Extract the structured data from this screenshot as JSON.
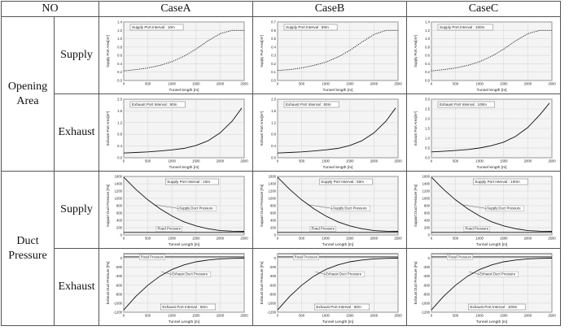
{
  "header": {
    "no": "NO",
    "cases": [
      "CaseA",
      "CaseB",
      "CaseC"
    ]
  },
  "groups": [
    {
      "label_lines": [
        "Opening",
        "Area"
      ],
      "rows": [
        "Supply",
        "Exhaust"
      ]
    },
    {
      "label_lines": [
        "Duct",
        "Pressure"
      ],
      "rows": [
        "Supply",
        "Exhaust"
      ]
    }
  ],
  "chart_data": [
    {
      "id": "area-supply-A",
      "type": "line",
      "style": "dotted",
      "ylabel": "Supply Port Area[m²]",
      "xlabel": "Tunnel length [m]",
      "annotation": "Supply Port Interval : 10m",
      "xlim": [
        0,
        2500
      ],
      "ylim": [
        0,
        1.4
      ],
      "xticks": [
        "0",
        "500",
        "1000",
        "1500",
        "2000",
        "2500"
      ],
      "yticks": [
        "0.0",
        "0.2",
        "0.4",
        "0.6",
        "0.8",
        "1.0",
        "1.2",
        "1.4"
      ],
      "x": [
        0,
        250,
        500,
        750,
        1000,
        1250,
        1500,
        1750,
        2000,
        2250,
        2500
      ],
      "y": [
        0.23,
        0.26,
        0.3,
        0.36,
        0.45,
        0.58,
        0.75,
        0.95,
        1.12,
        1.2,
        1.2
      ]
    },
    {
      "id": "area-supply-B",
      "type": "line",
      "style": "dotted",
      "ylabel": "Supply Port Area[m²]",
      "xlabel": "Tunnel length [m]",
      "annotation": "Supply Port Interval : 50m",
      "xlim": [
        0,
        2500
      ],
      "ylim": [
        0,
        0.7
      ],
      "xticks": [
        "0",
        "500",
        "1000",
        "1500",
        "2000",
        "2500"
      ],
      "yticks": [
        "0.0",
        "0.1",
        "0.2",
        "0.3",
        "0.4",
        "0.5",
        "0.6",
        "0.7"
      ],
      "x": [
        0,
        250,
        500,
        750,
        1000,
        1250,
        1500,
        1750,
        2000,
        2250,
        2500
      ],
      "y": [
        0.12,
        0.13,
        0.15,
        0.18,
        0.22,
        0.28,
        0.36,
        0.46,
        0.55,
        0.6,
        0.6
      ]
    },
    {
      "id": "area-supply-C",
      "type": "line",
      "style": "dotted",
      "ylabel": "Supply Port Area[m²]",
      "xlabel": "Tunnel length [m]",
      "annotation": "Supply Port Interval : 100m",
      "xlim": [
        0,
        2500
      ],
      "ylim": [
        0,
        1.4
      ],
      "xticks": [
        "0",
        "500",
        "1000",
        "1500",
        "2000",
        "2500"
      ],
      "yticks": [
        "0.0",
        "0.2",
        "0.4",
        "0.6",
        "0.8",
        "1.0",
        "1.2",
        "1.4"
      ],
      "x": [
        0,
        250,
        500,
        750,
        1000,
        1250,
        1500,
        1750,
        2000,
        2250,
        2500
      ],
      "y": [
        0.23,
        0.26,
        0.3,
        0.36,
        0.45,
        0.58,
        0.75,
        0.95,
        1.12,
        1.2,
        1.2
      ]
    },
    {
      "id": "area-exhaust-A",
      "type": "line",
      "style": "solid",
      "ylabel": "Exhaust Port Area[m²]",
      "xlabel": "Tunnel length [m]",
      "annotation": "Exhaust Port Interval : 50m",
      "xlim": [
        0,
        2500
      ],
      "ylim": [
        0,
        2.0
      ],
      "xticks": [
        "0",
        "500",
        "1000",
        "1500",
        "2000",
        "2500"
      ],
      "yticks": [
        "0.0",
        "0.4",
        "0.8",
        "1.2",
        "1.6",
        "2.0"
      ],
      "x": [
        0,
        250,
        500,
        750,
        1000,
        1250,
        1500,
        1750,
        2000,
        2250,
        2450
      ],
      "y": [
        0.16,
        0.18,
        0.2,
        0.23,
        0.27,
        0.32,
        0.42,
        0.58,
        0.85,
        1.25,
        1.7
      ]
    },
    {
      "id": "area-exhaust-B",
      "type": "line",
      "style": "solid",
      "ylabel": "Exhaust Port Area[m²]",
      "xlabel": "Tunnel length [m]",
      "annotation": "Exhaust Port Interval : 50m",
      "xlim": [
        0,
        2500
      ],
      "ylim": [
        0,
        2.0
      ],
      "xticks": [
        "0",
        "500",
        "1000",
        "1500",
        "2000",
        "2500"
      ],
      "yticks": [
        "0.0",
        "0.4",
        "0.8",
        "1.2",
        "1.6",
        "2.0"
      ],
      "x": [
        0,
        250,
        500,
        750,
        1000,
        1250,
        1500,
        1750,
        2000,
        2250,
        2450
      ],
      "y": [
        0.16,
        0.18,
        0.2,
        0.23,
        0.27,
        0.32,
        0.42,
        0.58,
        0.85,
        1.25,
        1.7
      ]
    },
    {
      "id": "area-exhaust-C",
      "type": "line",
      "style": "solid",
      "ylabel": "Exhaust Port Area[m²]",
      "xlabel": "Tunnel length [m]",
      "annotation": "Exhaust Port Interval : 100m",
      "xlim": [
        0,
        2500
      ],
      "ylim": [
        0,
        3.0
      ],
      "xticks": [
        "0",
        "500",
        "1000",
        "1500",
        "2000",
        "2500"
      ],
      "yticks": [
        "0.0",
        "0.5",
        "1.0",
        "1.5",
        "2.0",
        "2.5",
        "3.0"
      ],
      "x": [
        0,
        250,
        500,
        750,
        1000,
        1250,
        1500,
        1750,
        2000,
        2250,
        2450
      ],
      "y": [
        0.3,
        0.33,
        0.37,
        0.42,
        0.5,
        0.62,
        0.8,
        1.1,
        1.55,
        2.2,
        2.8
      ]
    },
    {
      "id": "pressure-supply-A",
      "type": "line",
      "style": "solid",
      "ylabel": "Support Duct Pressure [Pa]",
      "xlabel": "Tunnel Length [m]",
      "annotation": "Supply Port Interval : 10m",
      "series_labels": [
        "Supply Duct Pressure",
        "Road Pressure"
      ],
      "xlim": [
        0,
        2500
      ],
      "ylim": [
        0,
        1600
      ],
      "xticks": [
        "0",
        "500",
        "1000",
        "1500",
        "2000",
        "2500"
      ],
      "yticks": [
        "0",
        "200",
        "400",
        "600",
        "800",
        "1000",
        "1200",
        "1400",
        "1600"
      ],
      "series": [
        {
          "x": [
            0,
            250,
            500,
            750,
            1000,
            1250,
            1500,
            1750,
            2000,
            2250,
            2500
          ],
          "y": [
            1580,
            1250,
            960,
            720,
            520,
            360,
            250,
            170,
            120,
            105,
            100
          ]
        },
        {
          "x": [
            0,
            2500
          ],
          "y": [
            70,
            70
          ]
        }
      ]
    },
    {
      "id": "pressure-supply-B",
      "type": "line",
      "style": "solid",
      "ylabel": "Support Duct Pressure [Pa]",
      "xlabel": "Tunnel Length [m]",
      "annotation": "Supply Port Interval : 50m",
      "series_labels": [
        "Supply Duct Pressure",
        "Road Pressure"
      ],
      "xlim": [
        0,
        2500
      ],
      "ylim": [
        0,
        1600
      ],
      "xticks": [
        "0",
        "500",
        "1000",
        "1500",
        "2000",
        "2500"
      ],
      "yticks": [
        "0",
        "200",
        "400",
        "600",
        "800",
        "1000",
        "1200",
        "1400",
        "1600"
      ],
      "series": [
        {
          "x": [
            0,
            250,
            500,
            750,
            1000,
            1250,
            1500,
            1750,
            2000,
            2250,
            2500
          ],
          "y": [
            1580,
            1250,
            960,
            720,
            520,
            360,
            250,
            170,
            120,
            105,
            100
          ]
        },
        {
          "x": [
            0,
            2500
          ],
          "y": [
            70,
            70
          ]
        }
      ]
    },
    {
      "id": "pressure-supply-C",
      "type": "line",
      "style": "solid",
      "ylabel": "Support Duct Pressure [Pa]",
      "xlabel": "Tunnel Length [m]",
      "annotation": "Supply Port Interval : 100m",
      "series_labels": [
        "Supply Duct Pressure",
        "Road Pressure"
      ],
      "xlim": [
        0,
        2500
      ],
      "ylim": [
        0,
        1600
      ],
      "xticks": [
        "0",
        "500",
        "1000",
        "1500",
        "2000",
        "2500"
      ],
      "yticks": [
        "0",
        "200",
        "400",
        "600",
        "800",
        "1000",
        "1200",
        "1400",
        "1600"
      ],
      "series": [
        {
          "x": [
            0,
            250,
            500,
            750,
            1000,
            1250,
            1500,
            1750,
            2000,
            2250,
            2500
          ],
          "y": [
            1580,
            1250,
            960,
            720,
            520,
            360,
            250,
            170,
            120,
            105,
            100
          ]
        },
        {
          "x": [
            0,
            2500
          ],
          "y": [
            70,
            70
          ]
        }
      ]
    },
    {
      "id": "pressure-exhaust-A",
      "type": "line",
      "style": "solid",
      "ylabel": "Exhaust Duct Pressure [Pa]",
      "xlabel": "Tunnel Length [m]",
      "annotation": "Exhaust Port Interval : 50m",
      "series_labels": [
        "Road Pressure",
        "Exhaust Duct Pressure"
      ],
      "xlim": [
        0,
        2500
      ],
      "ylim": [
        -1200,
        100
      ],
      "xticks": [
        "0",
        "500",
        "1000",
        "1500",
        "2000",
        "2500"
      ],
      "yticks": [
        "-1200",
        "-1000",
        "-800",
        "-600",
        "-400",
        "-200",
        "0"
      ],
      "series": [
        {
          "x": [
            0,
            2500
          ],
          "y": [
            30,
            30
          ]
        },
        {
          "x": [
            0,
            250,
            500,
            750,
            1000,
            1250,
            1500,
            1750,
            2000,
            2250,
            2500
          ],
          "y": [
            -1150,
            -850,
            -600,
            -400,
            -250,
            -150,
            -80,
            -40,
            -15,
            -5,
            0
          ]
        }
      ]
    },
    {
      "id": "pressure-exhaust-B",
      "type": "line",
      "style": "solid",
      "ylabel": "Exhaust Duct Pressure [Pa]",
      "xlabel": "Tunnel Length [m]",
      "annotation": "Exhaust Port Interval : 50m",
      "series_labels": [
        "Road Pressure",
        "Exhaust Duct Pressure"
      ],
      "xlim": [
        0,
        2500
      ],
      "ylim": [
        -1200,
        100
      ],
      "xticks": [
        "0",
        "500",
        "1000",
        "1500",
        "2000",
        "2500"
      ],
      "yticks": [
        "-1200",
        "-1000",
        "-800",
        "-600",
        "-400",
        "-200",
        "0"
      ],
      "series": [
        {
          "x": [
            0,
            2500
          ],
          "y": [
            30,
            30
          ]
        },
        {
          "x": [
            0,
            250,
            500,
            750,
            1000,
            1250,
            1500,
            1750,
            2000,
            2250,
            2500
          ],
          "y": [
            -1150,
            -850,
            -600,
            -400,
            -250,
            -150,
            -80,
            -40,
            -15,
            -5,
            0
          ]
        }
      ]
    },
    {
      "id": "pressure-exhaust-C",
      "type": "line",
      "style": "solid",
      "ylabel": "Exhaust Duct Pressure [Pa]",
      "xlabel": "Tunnel Length [m]",
      "annotation": "Exhaust Port Interval : 100m",
      "series_labels": [
        "Road Pressure",
        "Exhaust Duct Pressure"
      ],
      "xlim": [
        0,
        2500
      ],
      "ylim": [
        -1200,
        100
      ],
      "xticks": [
        "0",
        "500",
        "1000",
        "1500",
        "2000",
        "2500"
      ],
      "yticks": [
        "-1200",
        "-1000",
        "-800",
        "-600",
        "-400",
        "-200",
        "0"
      ],
      "series": [
        {
          "x": [
            0,
            2500
          ],
          "y": [
            30,
            30
          ]
        },
        {
          "x": [
            0,
            250,
            500,
            750,
            1000,
            1250,
            1500,
            1750,
            2000,
            2250,
            2500
          ],
          "y": [
            -1150,
            -850,
            -600,
            -400,
            -250,
            -150,
            -80,
            -40,
            -15,
            -5,
            0
          ]
        }
      ]
    }
  ]
}
